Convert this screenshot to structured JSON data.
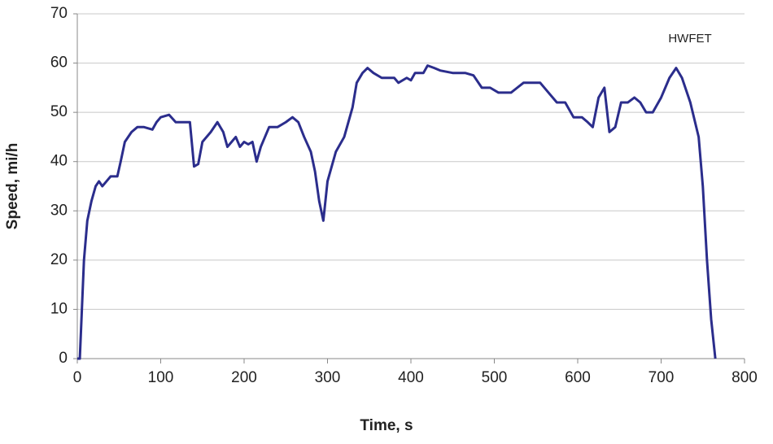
{
  "chart_data": {
    "type": "line",
    "x_label": "Time, s",
    "y_label": "Speed, mi/h",
    "x": [
      0,
      3,
      5,
      8,
      12,
      17,
      22,
      26,
      30,
      35,
      40,
      48,
      52,
      57,
      65,
      72,
      80,
      90,
      95,
      100,
      110,
      118,
      125,
      135,
      140,
      145,
      150,
      160,
      168,
      175,
      180,
      185,
      190,
      195,
      200,
      205,
      210,
      215,
      220,
      230,
      240,
      250,
      258,
      265,
      272,
      280,
      285,
      290,
      295,
      300,
      310,
      320,
      330,
      335,
      342,
      348,
      355,
      365,
      380,
      385,
      395,
      400,
      405,
      415,
      420,
      428,
      435,
      450,
      465,
      475,
      485,
      495,
      505,
      520,
      535,
      555,
      565,
      575,
      585,
      595,
      605,
      612,
      618,
      625,
      632,
      638,
      645,
      652,
      660,
      668,
      675,
      682,
      690,
      700,
      710,
      718,
      725,
      735,
      745,
      750,
      755,
      760,
      765
    ],
    "series": [
      {
        "name": "HWFET",
        "color": "#2b2d8c",
        "values": [
          0,
          0,
          8,
          20,
          28,
          32,
          35,
          36,
          35,
          36,
          37,
          37,
          40,
          44,
          46,
          47,
          47,
          46.5,
          48,
          49,
          49.5,
          48,
          48,
          48,
          39,
          39.5,
          44,
          46,
          48,
          46,
          43,
          44,
          45,
          43,
          44,
          43.5,
          44,
          40,
          43,
          47,
          47,
          48,
          49,
          48,
          45,
          42,
          38,
          32,
          28,
          36,
          42,
          45,
          51,
          56,
          58,
          59,
          58,
          57,
          57,
          56,
          57,
          56.5,
          58,
          58,
          59.5,
          59,
          58.5,
          58,
          58,
          57.5,
          55,
          55,
          54,
          54,
          56,
          56,
          54,
          52,
          52,
          49,
          49,
          48,
          47,
          53,
          55,
          46,
          47,
          52,
          52,
          53,
          52,
          50,
          50,
          53,
          57,
          59,
          57,
          52,
          45,
          35,
          20,
          8,
          0
        ]
      }
    ],
    "xlim": [
      0,
      800
    ],
    "xticks": [
      0,
      100,
      200,
      300,
      400,
      500,
      600,
      700,
      800
    ],
    "ylim": [
      0,
      70
    ],
    "yticks": [
      0,
      10,
      20,
      30,
      40,
      50,
      60,
      70
    ],
    "grid": true
  }
}
